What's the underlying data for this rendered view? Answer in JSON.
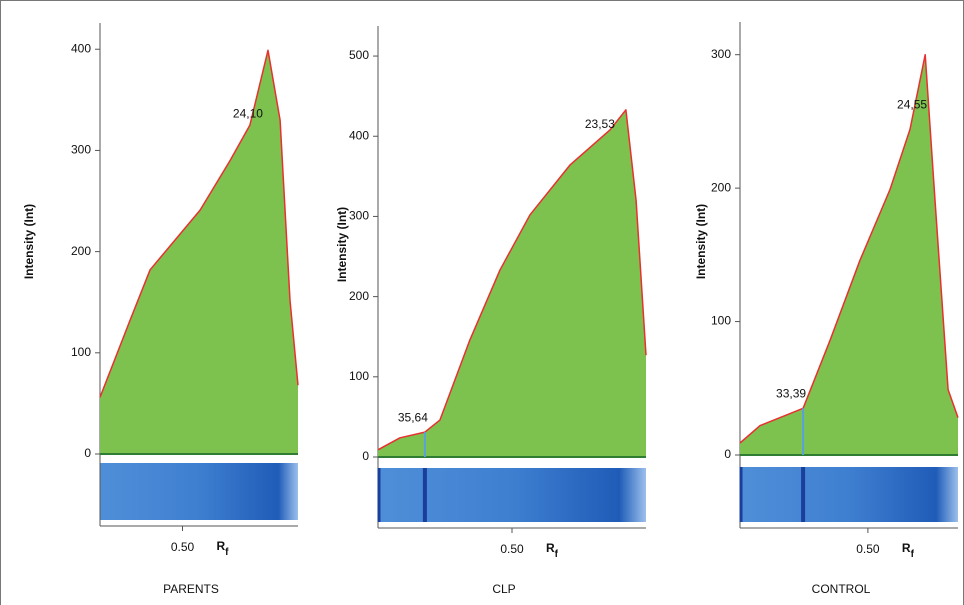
{
  "chart_data": [
    {
      "type": "area",
      "title": "PARENTS",
      "ylabel": "Intensity (Int)",
      "xlabel": [
        "R",
        "f"
      ],
      "x": [
        0.2,
        0.309,
        0.382,
        0.564,
        0.673,
        0.745,
        0.811,
        0.855,
        0.891,
        0.92
      ],
      "values": [
        56,
        132,
        182,
        241,
        290,
        325,
        399,
        330,
        152,
        68
      ],
      "xlim": [
        0.2,
        0.92
      ],
      "ylim": [
        0,
        420
      ],
      "xticks": [
        {
          "value": 0.5,
          "label": "0.50"
        }
      ],
      "yticks": [
        0,
        100,
        200,
        300,
        400
      ],
      "color": "#7dc24f",
      "line_color": "#e8312f",
      "peaks": [
        {
          "label": "24,10",
          "x": 0.738
        }
      ]
    },
    {
      "type": "area",
      "title": "CLP",
      "ylabel": "Intensity (Int)",
      "xlabel": [
        "R",
        "f"
      ],
      "x": [
        0,
        0.082,
        0.175,
        0.231,
        0.343,
        0.455,
        0.567,
        0.716,
        0.866,
        0.925,
        0.963,
        1.0
      ],
      "values": [
        9,
        24,
        31,
        46,
        146,
        233,
        302,
        364,
        408,
        433,
        320,
        127
      ],
      "xlim": [
        0,
        1
      ],
      "ylim": [
        0,
        530
      ],
      "xticks": [
        {
          "value": 0.5,
          "label": "0.50"
        }
      ],
      "yticks": [
        0,
        100,
        200,
        300,
        400,
        500
      ],
      "color": "#7dc24f",
      "line_color": "#e8312f",
      "peaks": [
        {
          "label": "35,64",
          "x": 0.175,
          "boundary": true
        },
        {
          "label": "23,53",
          "x": 0.828
        }
      ]
    },
    {
      "type": "area",
      "title": "CONTROL",
      "ylabel": "Intensity (Int)",
      "xlabel": [
        "R",
        "f"
      ],
      "x": [
        0.06,
        0.129,
        0.198,
        0.277,
        0.37,
        0.473,
        0.576,
        0.645,
        0.697,
        0.731,
        0.776,
        0.81
      ],
      "values": [
        9,
        22,
        28,
        35,
        86,
        146,
        199,
        244,
        300,
        191,
        49,
        28
      ],
      "xlim": [
        0.06,
        0.81
      ],
      "ylim": [
        0,
        320
      ],
      "xticks": [
        {
          "value": 0.5,
          "label": "0.50"
        }
      ],
      "yticks": [
        0,
        100,
        200,
        300
      ],
      "color": "#7dc24f",
      "line_color": "#e8312f",
      "peaks": [
        {
          "label": "33,39",
          "x": 0.277,
          "boundary": true
        },
        {
          "label": "24,55",
          "x": 0.652
        }
      ]
    }
  ]
}
